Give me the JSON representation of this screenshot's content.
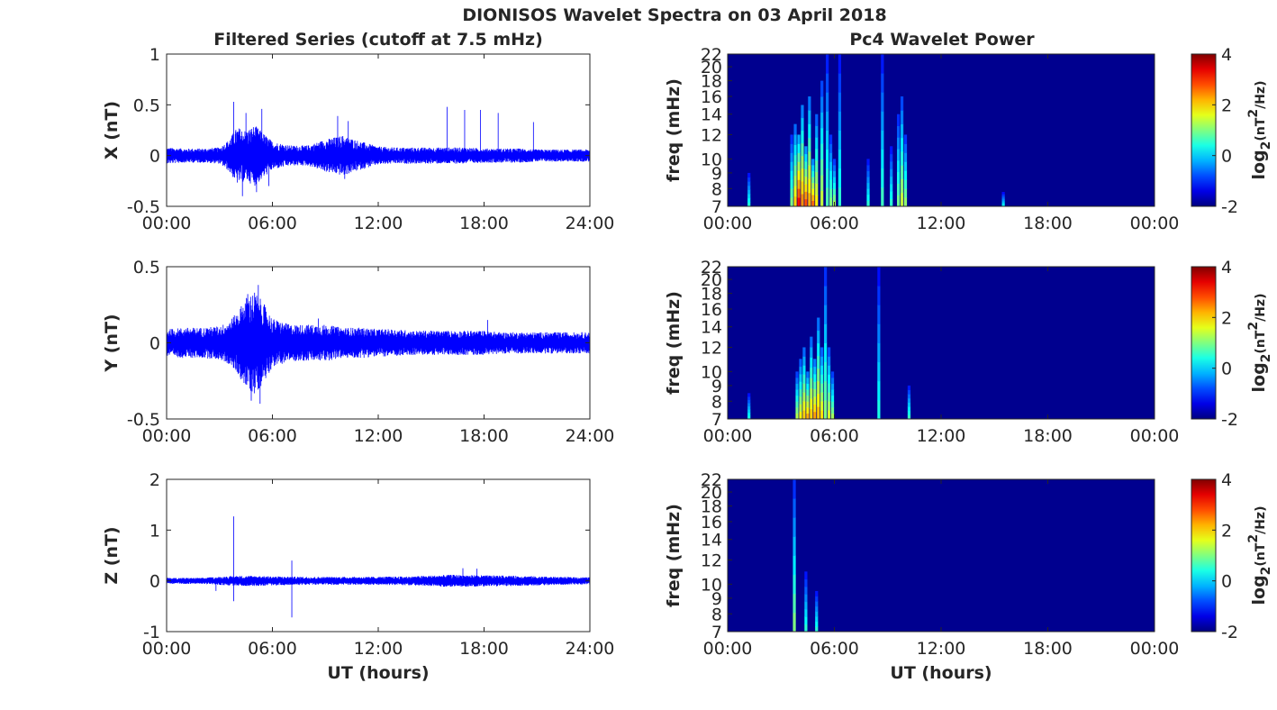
{
  "figure_title": "DIONISOS Wavelet Spectra on 03 April 2018",
  "left_column_title": "Filtered Series (cutoff at 7.5 mHz)",
  "right_column_title": "Pc4 Wavelet Power",
  "colors": {
    "trace": "#0000ff",
    "background": "#00008f",
    "axes": "#262626"
  },
  "chart_data": [
    {
      "type": "line",
      "name": "x-filtered-series",
      "ylabel": "X (nT)",
      "xlabel": "",
      "xlim": [
        0,
        24
      ],
      "ylim": [
        -0.5,
        1
      ],
      "x_tick_labels": [
        "00:00",
        "06:00",
        "12:00",
        "18:00",
        "24:00"
      ],
      "y_ticks": [
        -0.5,
        0,
        0.5,
        1
      ],
      "y_tick_labels": [
        "-0.5",
        "0",
        "0.5",
        "1"
      ],
      "envelope_hours": [
        0,
        1,
        2,
        3,
        3.5,
        4,
        4.5,
        5,
        5.5,
        6,
        7,
        8,
        9,
        10,
        11,
        12,
        13,
        14,
        15,
        16,
        17,
        18,
        19,
        20,
        21,
        22,
        23,
        24
      ],
      "envelope_nT": [
        0.08,
        0.07,
        0.07,
        0.08,
        0.15,
        0.28,
        0.25,
        0.3,
        0.22,
        0.14,
        0.1,
        0.1,
        0.16,
        0.2,
        0.14,
        0.09,
        0.08,
        0.08,
        0.08,
        0.08,
        0.08,
        0.07,
        0.07,
        0.07,
        0.06,
        0.06,
        0.06,
        0.06
      ],
      "spikes": [
        [
          3.8,
          0.53
        ],
        [
          4.5,
          0.42
        ],
        [
          5.4,
          0.46
        ],
        [
          9.7,
          0.39
        ],
        [
          10.3,
          0.34
        ],
        [
          15.9,
          0.48
        ],
        [
          16.9,
          0.45
        ],
        [
          17.8,
          0.45
        ],
        [
          18.8,
          0.42
        ],
        [
          20.8,
          0.33
        ],
        [
          4.3,
          -0.4
        ],
        [
          5.1,
          -0.36
        ],
        [
          5.8,
          -0.3
        ],
        [
          10.1,
          -0.23
        ]
      ]
    },
    {
      "type": "heatmap",
      "name": "x-wavelet-power",
      "ylabel": "freq (mHz)",
      "xlabel": "",
      "xlim": [
        0,
        24
      ],
      "ylim": [
        7,
        22
      ],
      "x_tick_labels": [
        "00:00",
        "06:00",
        "12:00",
        "18:00",
        "00:00"
      ],
      "y_ticks": [
        7,
        8,
        9,
        10,
        12,
        14,
        16,
        18,
        20,
        22
      ],
      "colorbar": {
        "label": "log2(nT2/Hz)",
        "range": [
          -2,
          4
        ],
        "ticks": [
          "-2",
          "0",
          "2",
          "4"
        ]
      },
      "streaks": [
        [
          1.2,
          9,
          0.45
        ],
        [
          3.6,
          12,
          1.0
        ],
        [
          3.8,
          13,
          2.0
        ],
        [
          4.0,
          12,
          3.2
        ],
        [
          4.2,
          15,
          2.4
        ],
        [
          4.4,
          11,
          2.8
        ],
        [
          4.6,
          16,
          2.2
        ],
        [
          4.8,
          10,
          2.6
        ],
        [
          5.0,
          14,
          1.8
        ],
        [
          5.3,
          18,
          1.4
        ],
        [
          5.6,
          22,
          0.7
        ],
        [
          5.8,
          12,
          1.0
        ],
        [
          6.0,
          10,
          1.2
        ],
        [
          6.3,
          22,
          0.5
        ],
        [
          7.9,
          10,
          0.5
        ],
        [
          8.7,
          22,
          0.6
        ],
        [
          9.2,
          11,
          0.5
        ],
        [
          9.6,
          14,
          0.9
        ],
        [
          9.8,
          16,
          1.4
        ],
        [
          10.0,
          12,
          1.1
        ],
        [
          15.5,
          7.8,
          0.3
        ]
      ]
    },
    {
      "type": "line",
      "name": "y-filtered-series",
      "ylabel": "Y (nT)",
      "xlabel": "",
      "xlim": [
        0,
        24
      ],
      "ylim": [
        -0.5,
        0.5
      ],
      "x_tick_labels": [
        "00:00",
        "06:00",
        "12:00",
        "18:00",
        "24:00"
      ],
      "y_ticks": [
        -0.5,
        0,
        0.5
      ],
      "y_tick_labels": [
        "-0.5",
        "0",
        "0.5"
      ],
      "envelope_hours": [
        0,
        1,
        2,
        3,
        3.5,
        4,
        4.5,
        5,
        5.5,
        6,
        7,
        8,
        9,
        10,
        11,
        12,
        13,
        14,
        15,
        16,
        17,
        18,
        19,
        20,
        21,
        22,
        23,
        24
      ],
      "envelope_nT": [
        0.09,
        0.1,
        0.1,
        0.11,
        0.14,
        0.2,
        0.3,
        0.34,
        0.26,
        0.16,
        0.12,
        0.12,
        0.12,
        0.1,
        0.1,
        0.09,
        0.09,
        0.08,
        0.08,
        0.08,
        0.08,
        0.08,
        0.07,
        0.07,
        0.07,
        0.07,
        0.07,
        0.07
      ],
      "spikes": [
        [
          4.6,
          0.32
        ],
        [
          5.2,
          0.38
        ],
        [
          4.8,
          -0.38
        ],
        [
          5.3,
          -0.4
        ],
        [
          8.6,
          0.16
        ],
        [
          18.2,
          0.15
        ]
      ]
    },
    {
      "type": "heatmap",
      "name": "y-wavelet-power",
      "ylabel": "freq (mHz)",
      "xlabel": "",
      "xlim": [
        0,
        24
      ],
      "ylim": [
        7,
        22
      ],
      "x_tick_labels": [
        "00:00",
        "06:00",
        "12:00",
        "18:00",
        "00:00"
      ],
      "y_ticks": [
        7,
        8,
        9,
        10,
        12,
        14,
        16,
        18,
        20,
        22
      ],
      "colorbar": {
        "label": "log2(nT2/Hz)",
        "range": [
          -2,
          4
        ],
        "ticks": [
          "-2",
          "0",
          "2",
          "4"
        ]
      },
      "streaks": [
        [
          1.2,
          8.5,
          0.4
        ],
        [
          3.9,
          10,
          1.3
        ],
        [
          4.1,
          11,
          1.7
        ],
        [
          4.3,
          12,
          2.0
        ],
        [
          4.5,
          10,
          2.2
        ],
        [
          4.7,
          13,
          2.0
        ],
        [
          4.9,
          11,
          2.3
        ],
        [
          5.1,
          15,
          2.1
        ],
        [
          5.3,
          12,
          1.9
        ],
        [
          5.5,
          22,
          1.0
        ],
        [
          5.7,
          12,
          1.5
        ],
        [
          5.9,
          10,
          1.2
        ],
        [
          8.5,
          22,
          0.4
        ],
        [
          10.2,
          9,
          0.6
        ]
      ]
    },
    {
      "type": "line",
      "name": "z-filtered-series",
      "ylabel": "Z (nT)",
      "xlabel": "UT (hours)",
      "xlim": [
        0,
        24
      ],
      "ylim": [
        -1,
        2
      ],
      "x_tick_labels": [
        "00:00",
        "06:00",
        "12:00",
        "18:00",
        "24:00"
      ],
      "y_ticks": [
        -1,
        0,
        1,
        2
      ],
      "y_tick_labels": [
        "-1",
        "0",
        "1",
        "2"
      ],
      "envelope_hours": [
        0,
        2,
        3,
        4,
        5,
        6,
        8,
        10,
        12,
        14,
        16,
        18,
        20,
        22,
        24
      ],
      "envelope_nT": [
        0.06,
        0.06,
        0.08,
        0.1,
        0.1,
        0.09,
        0.08,
        0.08,
        0.08,
        0.09,
        0.12,
        0.11,
        0.1,
        0.08,
        0.07
      ],
      "spikes": [
        [
          3.8,
          1.27
        ],
        [
          7.1,
          0.4
        ],
        [
          7.1,
          -0.72
        ],
        [
          3.8,
          -0.4
        ],
        [
          2.8,
          -0.2
        ],
        [
          16.8,
          0.25
        ],
        [
          17.6,
          0.24
        ]
      ]
    },
    {
      "type": "heatmap",
      "name": "z-wavelet-power",
      "ylabel": "freq (mHz)",
      "xlabel": "UT (hours)",
      "xlim": [
        0,
        24
      ],
      "ylim": [
        7,
        22
      ],
      "x_tick_labels": [
        "00:00",
        "06:00",
        "12:00",
        "18:00",
        "00:00"
      ],
      "y_ticks": [
        7,
        8,
        9,
        10,
        12,
        14,
        16,
        18,
        20,
        22
      ],
      "colorbar": {
        "label": "log2(nT2/Hz)",
        "range": [
          -2,
          4
        ],
        "ticks": [
          "-2",
          "0",
          "2",
          "4"
        ]
      },
      "streaks": [
        [
          3.75,
          22,
          1.0
        ],
        [
          4.4,
          11,
          0.5
        ],
        [
          5.0,
          9.5,
          0.5
        ]
      ]
    }
  ]
}
